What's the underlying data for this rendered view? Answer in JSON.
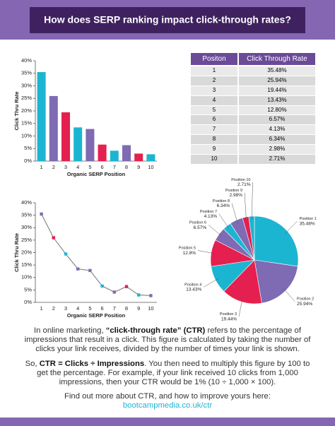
{
  "header": {
    "title": "How does SERP ranking impact click-through rates?"
  },
  "chart_data": [
    {
      "type": "bar",
      "categories": [
        "1",
        "2",
        "3",
        "4",
        "5",
        "6",
        "7",
        "8",
        "9",
        "10"
      ],
      "values": [
        35.48,
        25.94,
        19.44,
        13.43,
        12.8,
        6.57,
        4.13,
        6.34,
        2.98,
        2.71
      ],
      "colors": [
        "#1cb5d1",
        "#7e6bb3",
        "#e51f4f",
        "#1cb5d1",
        "#7e6bb3",
        "#e51f4f",
        "#1cb5d1",
        "#7e6bb3",
        "#e51f4f",
        "#1cb5d1"
      ],
      "y_label": "Click Thru Rate",
      "x_label": "Organic SERP Position",
      "ylim": [
        0,
        40
      ],
      "yticks": [
        {
          "value": 0,
          "label": "0%"
        },
        {
          "value": 5,
          "label": "5%"
        },
        {
          "value": 10,
          "label": "10%"
        },
        {
          "value": 15,
          "label": "15%"
        },
        {
          "value": 20,
          "label": "20%"
        },
        {
          "value": 25,
          "label": "25%"
        },
        {
          "value": 30,
          "label": "30%"
        },
        {
          "value": 35,
          "label": "35%"
        },
        {
          "value": 40,
          "label": "40%"
        }
      ]
    },
    {
      "type": "line",
      "categories": [
        "1",
        "2",
        "3",
        "4",
        "5",
        "6",
        "7",
        "8",
        "9",
        "10"
      ],
      "values": [
        35.48,
        25.94,
        19.44,
        13.43,
        12.8,
        6.57,
        4.13,
        6.34,
        2.98,
        2.71
      ],
      "color": "#8a8a8a",
      "colors": [
        "#7e6bb3",
        "#e51f4f",
        "#1cb5d1",
        "#7e6bb3",
        "#7e6bb3",
        "#1cb5d1",
        "#7e6bb3",
        "#e51f4f",
        "#1cb5d1",
        "#7e6bb3"
      ],
      "y_label": "Click Thru Rate",
      "x_label": "Organic SERP Position",
      "ylim": [
        0,
        40
      ],
      "yticks": [
        {
          "value": 0,
          "label": "0%"
        },
        {
          "value": 5,
          "label": "5%"
        },
        {
          "value": 10,
          "label": "10%"
        },
        {
          "value": 15,
          "label": "15%"
        },
        {
          "value": 20,
          "label": "20%"
        },
        {
          "value": 25,
          "label": "25%"
        },
        {
          "value": 30,
          "label": "30%"
        },
        {
          "value": 35,
          "label": "35%"
        },
        {
          "value": 40,
          "label": "40%"
        }
      ]
    },
    {
      "type": "pie",
      "categories": [
        "Position 1",
        "Position 2",
        "Position 3",
        "Position 4",
        "Position 5",
        "Position 6",
        "Position 7",
        "Position 8",
        "Position 9",
        "Position 10"
      ],
      "values": [
        35.48,
        25.94,
        19.44,
        13.43,
        12.8,
        6.57,
        4.13,
        6.34,
        2.98,
        2.71
      ],
      "value_labels": [
        "35.48%",
        "25.94%",
        "19.44%",
        "13.43%",
        "12.8%",
        "6.57%",
        "4.13%",
        "6.34%",
        "2.98%",
        "2.71%"
      ],
      "colors": [
        "#1cb5d1",
        "#7e6bb3",
        "#e51f4f",
        "#1cb5d1",
        "#e51f4f",
        "#7e6bb3",
        "#1cb5d1",
        "#7e6bb3",
        "#e51f4f",
        "#1cb5d1"
      ]
    }
  ],
  "table": {
    "columns": [
      "Positon",
      "Click Through Rate"
    ],
    "rows": [
      [
        1,
        "35.48%"
      ],
      [
        2,
        "25.94%"
      ],
      [
        3,
        "19.44%"
      ],
      [
        4,
        "13.43%"
      ],
      [
        5,
        "12.80%"
      ],
      [
        6,
        "6.57%"
      ],
      [
        7,
        "4.13%"
      ],
      [
        8,
        "6.34%"
      ],
      [
        9,
        "2.98%"
      ],
      [
        10,
        "2.71%"
      ]
    ]
  },
  "text": {
    "paragraphs": [
      [
        "In online marketing, ",
        "“click-through rate” (CTR)",
        " refers to the percentage of impressions that result in a click. This figure is calculated by taking the number of clicks your link receives, divided by the number of times your link is shown."
      ],
      [
        "So, ",
        "CTR = Clicks ÷ Impressions",
        ". You then need to multiply this figure by 100 to get the percentage. For example, if your link received 10 clicks from 1,000 impressions, then your CTR would be 1% (10 ÷ 1,000 × 100)."
      ],
      [
        "Find out more about CTR, and how to improve yours here: ",
        "bootcampmedia.co.uk/ctr"
      ]
    ]
  }
}
